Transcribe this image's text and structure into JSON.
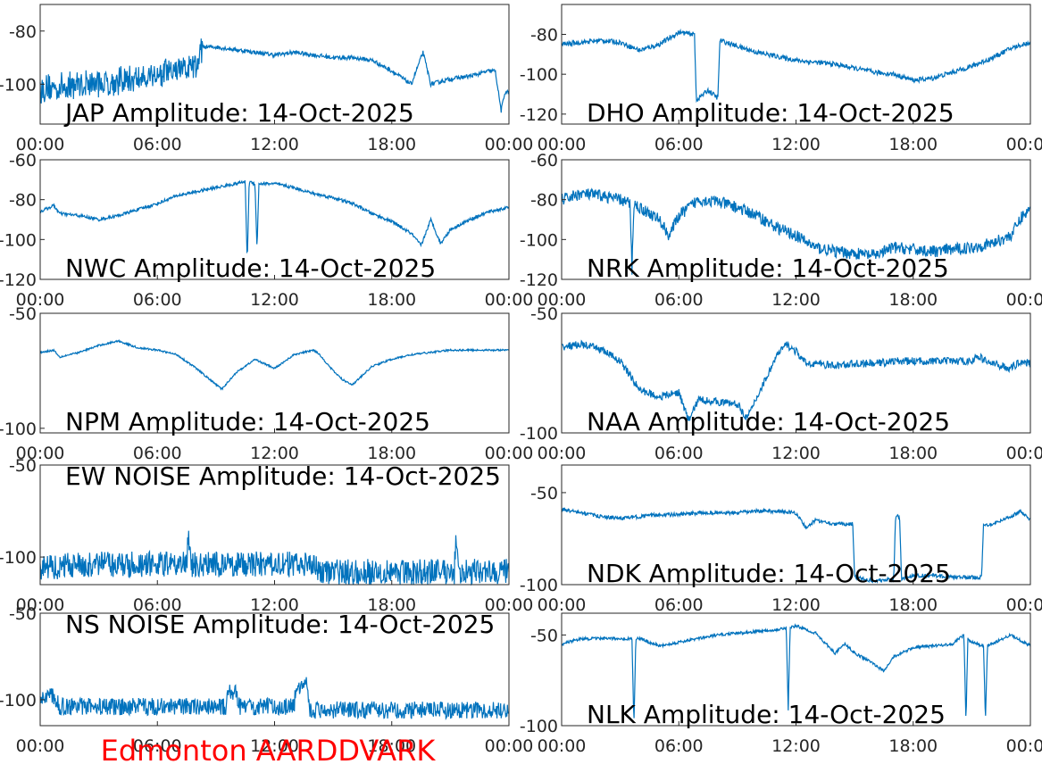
{
  "chart_data": [
    {
      "type": "line",
      "name": "jap",
      "title": "JAP Amplitude: 14-Oct-2025",
      "ylim": [
        -115,
        -70
      ],
      "yticks": [
        {
          "v": -80,
          "label": "-80"
        },
        {
          "v": -100,
          "label": "-100"
        }
      ],
      "x_ticks": [
        "00:00",
        "06:00",
        "12:00",
        "18:00",
        "00:00"
      ],
      "series": [
        {
          "name": "JAP",
          "color": "#0072BD",
          "x": [
            0,
            1,
            2,
            3,
            4,
            5,
            6,
            7,
            8,
            8.3,
            9,
            10,
            11,
            12,
            13,
            14,
            15,
            16,
            17,
            18,
            19,
            19.6,
            20,
            21,
            22,
            23,
            23.3,
            23.6,
            23.8,
            24
          ],
          "y": [
            -102,
            -101,
            -100,
            -99.5,
            -99,
            -98,
            -96,
            -95,
            -94,
            -86,
            -86,
            -87,
            -88,
            -89,
            -88,
            -89,
            -90,
            -90,
            -91,
            -95,
            -100,
            -88,
            -100,
            -98,
            -97,
            -95,
            -95,
            -110,
            -103,
            -103
          ],
          "noise_upto_hour": 8.3,
          "noise_amp": 5,
          "wiggle": 0.8
        }
      ]
    },
    {
      "type": "line",
      "name": "dho",
      "title": "DHO Amplitude: 14-Oct-2025",
      "ylim": [
        -125,
        -65
      ],
      "yticks": [
        {
          "v": -80,
          "label": "-80"
        },
        {
          "v": -100,
          "label": "-100"
        },
        {
          "v": -120,
          "label": "-120"
        }
      ],
      "x_ticks": [
        "00:00",
        "06:00",
        "12:00",
        "18:00",
        "00:00"
      ],
      "series": [
        {
          "name": "DHO",
          "color": "#0072BD",
          "x": [
            0,
            1,
            2,
            3,
            4,
            5,
            6,
            6.8,
            6.9,
            7.5,
            8,
            8.1,
            9,
            10,
            11,
            12,
            13,
            14,
            15,
            16,
            17,
            18,
            19,
            20,
            21,
            22,
            23,
            24
          ],
          "y": [
            -85,
            -84,
            -83,
            -84,
            -88,
            -85,
            -79,
            -80,
            -113,
            -108,
            -112,
            -83,
            -86,
            -89,
            -91,
            -93,
            -94,
            -95,
            -97,
            -99,
            -100,
            -103,
            -102,
            -99,
            -96,
            -92,
            -87,
            -84
          ],
          "noise_upto_hour": 0,
          "noise_amp": 0,
          "wiggle": 1.2
        }
      ]
    },
    {
      "type": "line",
      "name": "nwc",
      "title": "NWC Amplitude: 14-Oct-2025",
      "ylim": [
        -120,
        -60
      ],
      "yticks": [
        {
          "v": -60,
          "label": "-60"
        },
        {
          "v": -80,
          "label": "-80"
        },
        {
          "v": -100,
          "label": "-100"
        },
        {
          "v": -120,
          "label": "-120"
        }
      ],
      "x_ticks": [
        "00:00",
        "06:00",
        "12:00",
        "18:00",
        "00:00"
      ],
      "series": [
        {
          "name": "NWC",
          "color": "#0072BD",
          "x": [
            0,
            0.7,
            1,
            2,
            3,
            4,
            5,
            6,
            7,
            8,
            9,
            10,
            10.5,
            10.6,
            10.7,
            11,
            11.1,
            11.2,
            12,
            13,
            14,
            15,
            16,
            17,
            18,
            19,
            19.5,
            20,
            20.5,
            21,
            22,
            23,
            24
          ],
          "y": [
            -86,
            -83,
            -87,
            -88,
            -90,
            -88,
            -85,
            -82,
            -78,
            -76,
            -74,
            -72,
            -71,
            -112,
            -71,
            -72,
            -105,
            -72,
            -72,
            -74,
            -77,
            -79,
            -82,
            -87,
            -91,
            -97,
            -103,
            -90,
            -102,
            -95,
            -90,
            -86,
            -84
          ],
          "noise_upto_hour": 0,
          "noise_amp": 0,
          "wiggle": 0.8
        }
      ]
    },
    {
      "type": "line",
      "name": "nrk",
      "title": "NRK Amplitude: 14-Oct-2025",
      "ylim": [
        -120,
        -60
      ],
      "yticks": [
        {
          "v": -60,
          "label": "-60"
        },
        {
          "v": -80,
          "label": "-80"
        },
        {
          "v": -100,
          "label": "-100"
        },
        {
          "v": -120,
          "label": "-120"
        }
      ],
      "x_ticks": [
        "00:00",
        "06:00",
        "12:00",
        "18:00",
        "00:00"
      ],
      "series": [
        {
          "name": "NRK",
          "color": "#0072BD",
          "x": [
            0,
            1,
            2,
            3,
            3.5,
            3.6,
            3.7,
            4,
            5,
            5.5,
            6,
            7,
            8,
            9,
            10,
            11,
            12,
            13,
            14,
            15,
            16,
            17,
            18,
            19,
            20,
            21,
            22,
            23,
            23.6,
            24
          ],
          "y": [
            -80,
            -77,
            -78,
            -80,
            -82,
            -115,
            -82,
            -84,
            -90,
            -98,
            -88,
            -80,
            -81,
            -84,
            -88,
            -94,
            -98,
            -104,
            -106,
            -107,
            -108,
            -104,
            -105,
            -106,
            -105,
            -104,
            -102,
            -98,
            -88,
            -85
          ],
          "noise_upto_hour": 0,
          "noise_amp": 0,
          "wiggle": 3.0
        }
      ]
    },
    {
      "type": "line",
      "name": "npm",
      "title": "NPM Amplitude: 14-Oct-2025",
      "ylim": [
        -102,
        -50
      ],
      "yticks": [
        {
          "v": -50,
          "label": "-50"
        },
        {
          "v": -100,
          "label": "-100"
        }
      ],
      "x_ticks": [
        "00:00",
        "06:00",
        "12:00",
        "18:00",
        "00:00"
      ],
      "series": [
        {
          "name": "NPM",
          "color": "#0072BD",
          "x": [
            0,
            0.7,
            1,
            2,
            3,
            4,
            5,
            6,
            7,
            8,
            9,
            9.3,
            10,
            11,
            12,
            13,
            14,
            14.2,
            15,
            15.5,
            16,
            17,
            18,
            19,
            20,
            21,
            22,
            23,
            24
          ],
          "y": [
            -67,
            -66,
            -69,
            -67,
            -64,
            -62,
            -65,
            -66,
            -68,
            -74,
            -81,
            -83,
            -76,
            -70,
            -74,
            -68,
            -66,
            -67,
            -75,
            -79,
            -81,
            -73,
            -70,
            -68,
            -67,
            -66,
            -66,
            -66,
            -66
          ],
          "noise_upto_hour": 0,
          "noise_amp": 0,
          "wiggle": 0.4
        }
      ]
    },
    {
      "type": "line",
      "name": "naa",
      "title": "NAA Amplitude: 14-Oct-2025",
      "ylim": [
        -100,
        -50
      ],
      "yticks": [
        {
          "v": -50,
          "label": "-50"
        },
        {
          "v": -100,
          "label": "-100"
        }
      ],
      "x_ticks": [
        "00:00",
        "06:00",
        "12:00",
        "18:00",
        "00:00"
      ],
      "series": [
        {
          "name": "NAA",
          "color": "#0072BD",
          "x": [
            0,
            1,
            2,
            3,
            4,
            5,
            6,
            6.5,
            7,
            8,
            9,
            9.5,
            10,
            11,
            11.5,
            12,
            12.5,
            13,
            14,
            15,
            16,
            17,
            18,
            19,
            20,
            21,
            21.3,
            22,
            23,
            23.5,
            24
          ],
          "y": [
            -64,
            -63,
            -65,
            -70,
            -82,
            -85,
            -83,
            -95,
            -86,
            -87,
            -88,
            -94,
            -85,
            -68,
            -63,
            -66,
            -71,
            -71,
            -72,
            -71,
            -71,
            -70,
            -70,
            -70,
            -70,
            -70,
            -68,
            -71,
            -73,
            -70,
            -71
          ],
          "noise_upto_hour": 0,
          "noise_amp": 0,
          "wiggle": 1.6
        }
      ]
    },
    {
      "type": "line",
      "name": "ew_noise",
      "title": "EW NOISE Amplitude: 14-Oct-2025",
      "ylim": [
        -115,
        -50
      ],
      "yticks": [
        {
          "v": -50,
          "label": "-50"
        },
        {
          "v": -100,
          "label": "-100"
        }
      ],
      "x_ticks": [
        "00:00",
        "06:00",
        "12:00",
        "18:00",
        "00:00"
      ],
      "series": [
        {
          "name": "EW NOISE",
          "color": "#0072BD",
          "x": [
            0,
            2,
            4,
            6,
            7.5,
            7.6,
            7.7,
            9,
            10,
            12,
            14,
            14.5,
            16,
            18,
            20,
            21.2,
            21.3,
            21.4,
            22,
            24
          ],
          "y": [
            -106,
            -104,
            -104,
            -104,
            -104,
            -85,
            -104,
            -104,
            -104,
            -104,
            -104,
            -108,
            -108,
            -108,
            -108,
            -108,
            -86,
            -108,
            -108,
            -108
          ],
          "noise_upto_hour": 24,
          "noise_amp": 7,
          "wiggle": 0
        }
      ]
    },
    {
      "type": "line",
      "name": "ndk",
      "title": "NDK Amplitude: 14-Oct-2025",
      "ylim": [
        -100,
        -35
      ],
      "yticks": [
        {
          "v": -50,
          "label": "-50"
        },
        {
          "v": -100,
          "label": "-100"
        }
      ],
      "x_ticks": [
        "00:00",
        "06:00",
        "12:00",
        "18:00",
        "00:00"
      ],
      "series": [
        {
          "name": "NDK",
          "color": "#0072BD",
          "x": [
            0,
            1,
            2,
            3,
            4,
            5,
            6,
            7,
            8,
            9,
            10,
            11,
            12,
            12.5,
            13,
            14,
            14.9,
            15,
            16,
            17,
            17.1,
            17.3,
            17.4,
            18,
            19,
            20,
            21,
            21.5,
            21.6,
            22,
            23,
            23.5,
            24
          ],
          "y": [
            -59,
            -61,
            -63,
            -64,
            -63,
            -62,
            -62,
            -61,
            -61,
            -61,
            -60,
            -60,
            -61,
            -69,
            -65,
            -67,
            -67,
            -96,
            -98,
            -97,
            -63,
            -63,
            -97,
            -95,
            -95,
            -96,
            -96,
            -96,
            -68,
            -67,
            -63,
            -60,
            -65
          ],
          "noise_upto_hour": 0,
          "noise_amp": 0,
          "wiggle": 1.0
        }
      ]
    },
    {
      "type": "line",
      "name": "ns_noise",
      "title": "NS NOISE Amplitude: 14-Oct-2025",
      "ylim": [
        -115,
        -50
      ],
      "yticks": [
        {
          "v": -50,
          "label": "-50"
        },
        {
          "v": -100,
          "label": "-100"
        }
      ],
      "x_ticks": [
        "00:00",
        "06:00",
        "12:00",
        "18:00",
        "00:00"
      ],
      "series": [
        {
          "name": "NS NOISE",
          "color": "#0072BD",
          "x": [
            0,
            0.5,
            1,
            2,
            4,
            6,
            8,
            9.5,
            9.6,
            10,
            10.2,
            11,
            12,
            13,
            13.1,
            13.7,
            13.8,
            14.5,
            16,
            18,
            20,
            22,
            24
          ],
          "y": [
            -100,
            -96,
            -104,
            -104,
            -104,
            -104,
            -104,
            -104,
            -95,
            -96,
            -104,
            -104,
            -104,
            -104,
            -92,
            -91,
            -106,
            -106,
            -106,
            -106,
            -106,
            -106,
            -106
          ],
          "noise_upto_hour": 24,
          "noise_amp": 5,
          "wiggle": 0
        }
      ]
    },
    {
      "type": "line",
      "name": "nlk",
      "title": "NLK Amplitude: 14-Oct-2025",
      "ylim": [
        -100,
        -38
      ],
      "yticks": [
        {
          "v": -50,
          "label": "-50"
        },
        {
          "v": -100,
          "label": "-100"
        }
      ],
      "x_ticks": [
        "00:00",
        "06:00",
        "12:00",
        "18:00",
        "00:00"
      ],
      "series": [
        {
          "name": "NLK",
          "color": "#0072BD",
          "x": [
            0,
            1,
            2,
            3,
            3.6,
            3.7,
            3.8,
            4,
            5,
            6,
            7,
            8,
            9,
            10,
            11,
            11.5,
            11.6,
            11.7,
            12,
            13,
            14,
            14.5,
            15,
            16,
            16.5,
            17,
            18,
            19,
            20,
            20.6,
            20.7,
            20.8,
            21,
            21.6,
            21.7,
            21.8,
            22,
            23,
            24
          ],
          "y": [
            -55,
            -52,
            -52,
            -52,
            -52,
            -99,
            -52,
            -52,
            -56,
            -54,
            -52,
            -50,
            -49,
            -48,
            -47,
            -46,
            -92,
            -46,
            -45,
            -49,
            -60,
            -55,
            -60,
            -66,
            -70,
            -62,
            -57,
            -56,
            -55,
            -50,
            -98,
            -52,
            -54,
            -56,
            -98,
            -56,
            -55,
            -50,
            -56
          ],
          "noise_upto_hour": 0,
          "noise_amp": 0,
          "wiggle": 0.8
        }
      ]
    }
  ],
  "footer": {
    "label": "Edmonton AARDDVARK",
    "color": "#ff0000"
  }
}
